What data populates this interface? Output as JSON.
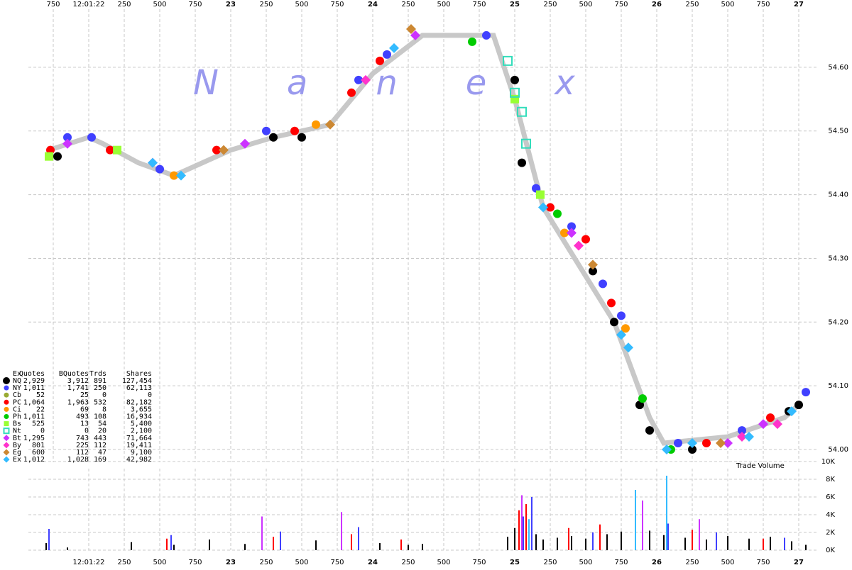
{
  "chart_data": [
    {
      "type": "scatter",
      "watermark": "Nanex",
      "xlim": [
        21.575,
        27.125
      ],
      "xticks": [
        {
          "value": 21.75,
          "label": "750"
        },
        {
          "value": 22,
          "label": "12:01:22"
        },
        {
          "value": 22.25,
          "label": "250"
        },
        {
          "value": 22.5,
          "label": "500"
        },
        {
          "value": 22.75,
          "label": "750"
        },
        23,
        {
          "value": 23.25,
          "label": "250"
        },
        {
          "value": 23.5,
          "label": "500"
        },
        {
          "value": 23.75,
          "label": "750"
        },
        24,
        {
          "value": 24.25,
          "label": "250"
        },
        {
          "value": 24.5,
          "label": "500"
        },
        {
          "value": 24.75,
          "label": "750"
        },
        25,
        {
          "value": 25.25,
          "label": "250"
        },
        {
          "value": 25.5,
          "label": "500"
        },
        {
          "value": 25.75,
          "label": "750"
        },
        26,
        {
          "value": 26.25,
          "label": "250"
        },
        {
          "value": 26.5,
          "label": "500"
        },
        {
          "value": 26.75,
          "label": "750"
        },
        27
      ],
      "ylim": [
        53.98,
        54.7
      ],
      "yticks": [
        {
          "value": 54.0,
          "label": "54.00"
        },
        {
          "value": 54.1,
          "label": "54.10"
        },
        {
          "value": 54.2,
          "label": "54.20"
        },
        {
          "value": 54.3,
          "label": "54.30"
        },
        {
          "value": 54.4,
          "label": "54.40"
        },
        {
          "value": 54.5,
          "label": "54.50"
        },
        {
          "value": 54.6,
          "label": "54.60"
        }
      ],
      "grid": true,
      "reference_line": {
        "color": "#c8c8c8",
        "x": [
          21.72,
          22.0,
          22.1,
          22.35,
          22.6,
          22.7,
          23.0,
          23.3,
          23.7,
          24.0,
          24.35,
          24.85,
          25.0,
          25.2,
          25.7,
          25.95,
          26.05,
          26.5,
          26.9,
          27.0
        ],
        "values": [
          54.47,
          54.49,
          54.48,
          54.45,
          54.43,
          54.44,
          54.47,
          54.49,
          54.51,
          54.59,
          54.65,
          54.65,
          54.55,
          54.38,
          54.2,
          54.05,
          54.01,
          54.02,
          54.05,
          54.07
        ]
      },
      "series": [
        {
          "color": "#000000",
          "marker": "circle",
          "x": [
            21.78,
            23.3,
            23.5,
            25.0,
            25.05,
            25.55,
            25.7,
            25.88,
            25.95,
            26.25,
            26.93,
            27.0
          ],
          "values": [
            54.46,
            54.49,
            54.49,
            54.58,
            54.45,
            54.28,
            54.2,
            54.07,
            54.03,
            54.0,
            54.06,
            54.07
          ]
        },
        {
          "color": "#4040ff",
          "marker": "circle",
          "x": [
            21.85,
            22.02,
            22.5,
            23.25,
            23.9,
            24.1,
            24.8,
            25.15,
            25.4,
            25.62,
            25.75,
            26.15,
            26.6,
            27.05
          ],
          "values": [
            54.49,
            54.49,
            54.44,
            54.5,
            54.58,
            54.62,
            54.65,
            54.41,
            54.35,
            54.26,
            54.21,
            54.01,
            54.03,
            54.09
          ]
        },
        {
          "color": "#ff0000",
          "marker": "circle",
          "x": [
            21.73,
            22.15,
            22.9,
            23.45,
            23.85,
            24.05,
            25.25,
            25.5,
            25.68,
            26.35,
            26.8
          ],
          "values": [
            54.47,
            54.47,
            54.47,
            54.5,
            54.56,
            54.61,
            54.38,
            54.33,
            54.23,
            54.01,
            54.05
          ]
        },
        {
          "color": "#ff9900",
          "marker": "circle",
          "x": [
            22.6,
            23.6,
            25.35,
            25.78
          ],
          "values": [
            54.43,
            54.51,
            54.34,
            54.19
          ]
        },
        {
          "color": "#00cc00",
          "marker": "circle",
          "x": [
            24.7,
            25.3,
            25.9,
            26.1
          ],
          "values": [
            54.64,
            54.37,
            54.08,
            54.0
          ]
        },
        {
          "color": "#99ff33",
          "marker": "square",
          "x": [
            21.72,
            22.2,
            25.0,
            25.18
          ],
          "values": [
            54.46,
            54.47,
            54.55,
            54.4
          ]
        },
        {
          "color": "#33ddbb",
          "marker": "hollow-square",
          "x": [
            24.95,
            25.0,
            25.05,
            25.08
          ],
          "values": [
            54.61,
            54.56,
            54.53,
            54.48
          ]
        },
        {
          "color": "#cc33ff",
          "marker": "diamond",
          "x": [
            21.85,
            23.1,
            24.3,
            25.4,
            26.5,
            26.75
          ],
          "values": [
            54.48,
            54.48,
            54.65,
            54.34,
            54.01,
            54.04
          ]
        },
        {
          "color": "#ff33cc",
          "marker": "diamond",
          "x": [
            22.45,
            23.95,
            25.45,
            26.6,
            26.85
          ],
          "values": [
            54.45,
            54.58,
            54.32,
            54.02,
            54.04
          ]
        },
        {
          "color": "#cc8833",
          "marker": "diamond",
          "x": [
            22.95,
            23.7,
            24.27,
            25.55,
            26.45
          ],
          "values": [
            54.47,
            54.51,
            54.66,
            54.29,
            54.01
          ]
        },
        {
          "color": "#33bbff",
          "marker": "diamond",
          "x": [
            22.45,
            22.65,
            24.15,
            25.2,
            25.75,
            25.8,
            26.07,
            26.25,
            26.65,
            26.95
          ],
          "values": [
            54.45,
            54.43,
            54.63,
            54.38,
            54.18,
            54.16,
            54.0,
            54.01,
            54.02,
            54.06
          ]
        }
      ]
    },
    {
      "type": "bar",
      "annotation": "Trade Volume",
      "xlim": [
        21.575,
        27.125
      ],
      "xticks": [
        {
          "value": 22,
          "label": "12:01:22"
        },
        {
          "value": 22.25,
          "label": "250"
        },
        {
          "value": 22.5,
          "label": "500"
        },
        {
          "value": 22.75,
          "label": "750"
        },
        23,
        {
          "value": 23.25,
          "label": "250"
        },
        {
          "value": 23.5,
          "label": "500"
        },
        {
          "value": 23.75,
          "label": "750"
        },
        24,
        {
          "value": 24.25,
          "label": "250"
        },
        {
          "value": 24.5,
          "label": "500"
        },
        {
          "value": 24.75,
          "label": "750"
        },
        25,
        {
          "value": 25.25,
          "label": "250"
        },
        {
          "value": 25.5,
          "label": "500"
        },
        {
          "value": 25.75,
          "label": "750"
        },
        26,
        {
          "value": 26.25,
          "label": "250"
        },
        {
          "value": 26.5,
          "label": "500"
        },
        {
          "value": 26.75,
          "label": "750"
        },
        27
      ],
      "ylim": [
        0,
        10000
      ],
      "yticks": [
        {
          "value": 0,
          "label": "0K"
        },
        {
          "value": 2000,
          "label": "2K"
        },
        {
          "value": 4000,
          "label": "4K"
        },
        {
          "value": 6000,
          "label": "6K"
        },
        {
          "value": 8000,
          "label": "8K"
        },
        {
          "value": 10000,
          "label": "10K"
        }
      ],
      "grid": true,
      "series": [
        {
          "color": "#000000",
          "x": [
            21.7,
            21.85,
            22.3,
            22.6,
            22.85,
            23.1,
            23.3,
            23.6,
            23.85,
            24.05,
            24.25,
            24.35,
            24.95,
            25.0,
            25.05,
            25.1,
            25.15,
            25.2,
            25.3,
            25.4,
            25.5,
            25.65,
            25.75,
            25.85,
            25.95,
            26.05,
            26.2,
            26.35,
            26.5,
            26.65,
            26.8,
            26.95,
            27.05
          ],
          "values": [
            800,
            300,
            900,
            600,
            1200,
            700,
            900,
            1100,
            1000,
            800,
            600,
            700,
            1500,
            2500,
            3000,
            2800,
            1800,
            1200,
            1400,
            1600,
            1300,
            1800,
            2100,
            1500,
            2200,
            1700,
            1400,
            1200,
            1600,
            1300,
            1500,
            1000,
            600
          ]
        },
        {
          "color": "#ff0000",
          "x": [
            22.55,
            23.3,
            23.85,
            24.2,
            25.03,
            25.08,
            25.38,
            25.6,
            26.25,
            26.75
          ],
          "values": [
            1300,
            1500,
            1800,
            1200,
            4500,
            5200,
            2500,
            2900,
            2300,
            1300
          ]
        },
        {
          "color": "#4040ff",
          "x": [
            21.72,
            22.58,
            23.35,
            23.9,
            25.06,
            25.12,
            25.55,
            26.08,
            26.42,
            26.9
          ],
          "values": [
            2400,
            1700,
            2100,
            2600,
            3800,
            6000,
            2000,
            3000,
            2000,
            1400
          ]
        },
        {
          "color": "#cc33ff",
          "x": [
            23.22,
            23.78,
            25.05,
            25.9,
            26.3
          ],
          "values": [
            3800,
            4300,
            6200,
            5600,
            3500
          ]
        },
        {
          "color": "#33bbff",
          "x": [
            25.1,
            25.85,
            26.07
          ],
          "values": [
            3500,
            6800,
            8400
          ]
        }
      ]
    }
  ],
  "legend_table": {
    "columns": [
      "Ex",
      "Quotes",
      "BQuotes",
      "Trds",
      "Shares"
    ],
    "rows": [
      {
        "color": "#000000",
        "marker": "circle",
        "cells": [
          "NQ",
          "2,929",
          "3,912",
          "891",
          "127,454"
        ]
      },
      {
        "color": "#4040ff",
        "marker": "circle",
        "cells": [
          "NY",
          "1,011",
          "1,741",
          "250",
          "62,113"
        ]
      },
      {
        "color": "#99aa33",
        "marker": "circle",
        "cells": [
          "Cb",
          "52",
          "25",
          "0",
          "0"
        ]
      },
      {
        "color": "#ff0000",
        "marker": "circle",
        "cells": [
          "PC",
          "1,064",
          "1,963",
          "532",
          "82,182"
        ]
      },
      {
        "color": "#ff9900",
        "marker": "circle",
        "cells": [
          "Ci",
          "22",
          "69",
          "8",
          "3,655"
        ]
      },
      {
        "color": "#00cc00",
        "marker": "circle",
        "cells": [
          "Ph",
          "1,011",
          "493",
          "108",
          "16,934"
        ]
      },
      {
        "color": "#99ff33",
        "marker": "square",
        "cells": [
          "Bs",
          "525",
          "13",
          "54",
          "5,400"
        ]
      },
      {
        "color": "#33ddbb",
        "marker": "hollow-square",
        "cells": [
          "Nt",
          "0",
          "0",
          "20",
          "2,100"
        ]
      },
      {
        "color": "#cc33ff",
        "marker": "diamond",
        "cells": [
          "Bt",
          "1,295",
          "743",
          "443",
          "71,664"
        ]
      },
      {
        "color": "#ff33cc",
        "marker": "diamond",
        "cells": [
          "By",
          "801",
          "225",
          "112",
          "19,411"
        ]
      },
      {
        "color": "#cc8833",
        "marker": "diamond",
        "cells": [
          "Eg",
          "600",
          "112",
          "47",
          "9,100"
        ]
      },
      {
        "color": "#33bbff",
        "marker": "diamond",
        "cells": [
          "Ex",
          "1,012",
          "1,028",
          "169",
          "42,982"
        ]
      }
    ]
  }
}
